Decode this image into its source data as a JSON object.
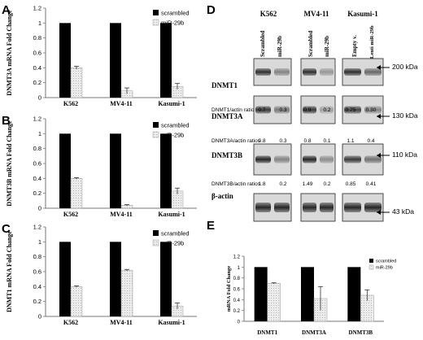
{
  "panel_letters": {
    "A": "A",
    "B": "B",
    "C": "C",
    "D": "D",
    "E": "E"
  },
  "colors": {
    "scrambled": "#000000",
    "mir29b_fill": "#e3e3e3",
    "axis": "#777777"
  },
  "chart_data": [
    {
      "panel": "A",
      "type": "bar",
      "ylabel": "DNMT3A mRNA Fold Change",
      "yticks": [
        "0",
        "0.2",
        "0.4",
        "0.6",
        "0.8",
        "1",
        "1.2"
      ],
      "ylim": [
        0,
        1.2
      ],
      "categories": [
        "K562",
        "MV4-11",
        "Kasumi-1"
      ],
      "series": [
        {
          "name": "scrambled",
          "values": [
            1,
            1,
            1
          ]
        },
        {
          "name": "miR-29b",
          "values": [
            0.4,
            0.09,
            0.15
          ],
          "errors": [
            0.02,
            0.04,
            0.04
          ]
        }
      ],
      "legend": "top-right"
    },
    {
      "panel": "B",
      "type": "bar",
      "ylabel": "DNMT3B mRNA Fold Change",
      "yticks": [
        "0",
        "0.2",
        "0.4",
        "0.6",
        "0.8",
        "1",
        "1.2"
      ],
      "ylim": [
        0,
        1.2
      ],
      "categories": [
        "K562",
        "MV4-11",
        "Kasumi-1"
      ],
      "series": [
        {
          "name": "scrambled",
          "values": [
            1,
            1,
            1
          ]
        },
        {
          "name": "miR-29b",
          "values": [
            0.4,
            0.04,
            0.23
          ],
          "errors": [
            0.01,
            0.01,
            0.04
          ]
        }
      ],
      "legend": "top-right"
    },
    {
      "panel": "C",
      "type": "bar",
      "ylabel": "DNMT1 mRNA Fold Change",
      "yticks": [
        "0",
        "0.2",
        "0.4",
        "0.6",
        "0.8",
        "1",
        "1.2"
      ],
      "ylim": [
        0,
        1.2
      ],
      "categories": [
        "K562",
        "MV4-11",
        "Kasumi-1"
      ],
      "series": [
        {
          "name": "scrambled",
          "values": [
            1,
            1,
            1
          ]
        },
        {
          "name": "miR-29b",
          "values": [
            0.4,
            0.62,
            0.14
          ],
          "errors": [
            0.01,
            0.01,
            0.04
          ]
        }
      ],
      "legend": "top-right"
    },
    {
      "panel": "E",
      "type": "bar",
      "ylabel": "mRNA Fold Change",
      "yticks": [
        "0",
        "0.2",
        "0.4",
        "0.6",
        "0.8",
        "1",
        "1.2"
      ],
      "ylim": [
        0,
        1.2
      ],
      "categories": [
        "DNMT1",
        "DNMT3A",
        "DNMT3B"
      ],
      "series": [
        {
          "name": "scrambled",
          "values": [
            1,
            1,
            1
          ]
        },
        {
          "name": "miR-29b",
          "values": [
            0.7,
            0.42,
            0.48
          ],
          "errors": [
            0.01,
            0.22,
            0.1
          ]
        }
      ],
      "legend": "top-right"
    }
  ],
  "blot": {
    "cell_lines": [
      "K562",
      "MV4-11",
      "Kasumi-1"
    ],
    "lane_labels": [
      [
        "Scrambled",
        "miR-29b"
      ],
      [
        "Scrambled",
        "miR-29b"
      ],
      [
        "Empty v.",
        "Lenti miR-29b"
      ]
    ],
    "rows": [
      {
        "label": "DNMT1",
        "kda": "200 kDa",
        "ratio_label": "DNMT1/actin ratios",
        "ratios": [
          "0.7",
          "0.3",
          "0.9",
          "0.2",
          "0.75",
          "0.30"
        ]
      },
      {
        "label": "DNMT3A",
        "kda": "130 kDa",
        "ratio_label": "DNMT3A/actin ratios",
        "ratios": [
          "0.8",
          "0.3",
          "0.8",
          "0.1",
          "1.1",
          "0.4"
        ]
      },
      {
        "label": "DNMT3B",
        "kda": "110 kDa",
        "ratio_label": "DNMT3B/actin ratios",
        "ratios": [
          "1.8",
          "0.2",
          "1.49",
          "0.2",
          "0.85",
          "0.41"
        ]
      },
      {
        "label": "β-actin",
        "kda": "43 kDa",
        "ratio_label": "",
        "ratios": []
      }
    ]
  }
}
